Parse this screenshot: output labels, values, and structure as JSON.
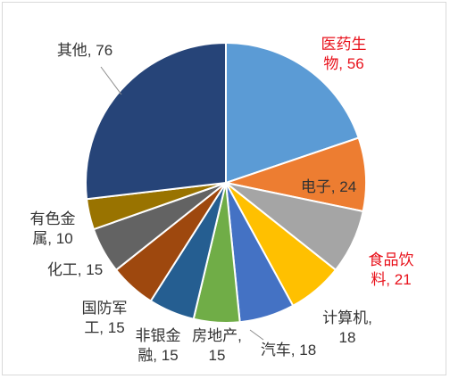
{
  "chart_data": {
    "type": "pie",
    "title": "",
    "slices": [
      {
        "name": "医药生物",
        "value": 56,
        "color": "#5b9bd5",
        "highlight": true,
        "label_lines": [
          "医药生",
          "物, 56"
        ]
      },
      {
        "name": "电子",
        "value": 24,
        "color": "#ed7d31",
        "highlight": false,
        "label_lines": [
          "电子, 24"
        ]
      },
      {
        "name": "食品饮料",
        "value": 21,
        "color": "#a5a5a5",
        "highlight": true,
        "label_lines": [
          "食品饮",
          "料, 21"
        ]
      },
      {
        "name": "计算机",
        "value": 18,
        "color": "#ffc000",
        "highlight": false,
        "label_lines": [
          "计算机,",
          "18"
        ]
      },
      {
        "name": "汽车",
        "value": 18,
        "color": "#4472c4",
        "highlight": false,
        "label_lines": [
          "汽车, 18"
        ]
      },
      {
        "name": "房地产",
        "value": 15,
        "color": "#70ad47",
        "highlight": false,
        "label_lines": [
          "房地产,",
          "15"
        ]
      },
      {
        "name": "非银金融",
        "value": 15,
        "color": "#255e91",
        "highlight": false,
        "label_lines": [
          "非银金",
          "融, 15"
        ]
      },
      {
        "name": "国防军工",
        "value": 15,
        "color": "#9e480e",
        "highlight": false,
        "label_lines": [
          "国防军",
          "工, 15"
        ]
      },
      {
        "name": "化工",
        "value": 15,
        "color": "#636363",
        "highlight": false,
        "label_lines": [
          "化工, 15"
        ]
      },
      {
        "name": "有色金属",
        "value": 10,
        "color": "#997300",
        "highlight": false,
        "label_lines": [
          "有色金",
          "属, 10"
        ]
      },
      {
        "name": "其他",
        "value": 76,
        "color": "#264478",
        "highlight": false,
        "label_lines": [
          "其他, 76"
        ]
      }
    ],
    "start_angle_deg": 0,
    "direction": "clockwise",
    "legend": "none",
    "highlight_color": "#e8101a"
  }
}
